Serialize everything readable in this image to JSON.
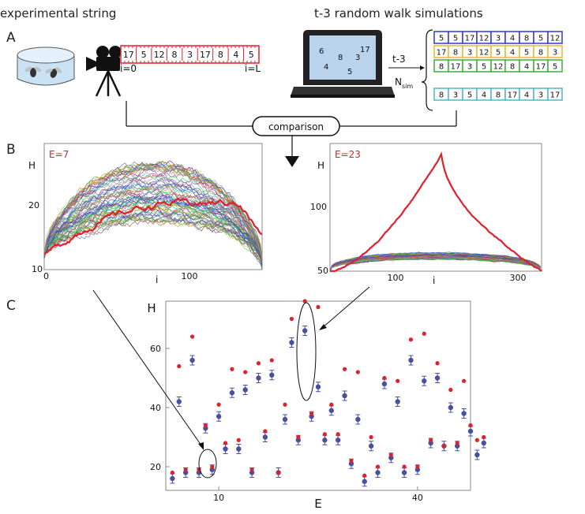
{
  "headers": {
    "left": "experimental string",
    "right": "t-3 random walk simulations"
  },
  "panel_letters": [
    "A",
    "B",
    "C"
  ],
  "panel_a": {
    "experimental_string": [
      "17",
      "5",
      "12",
      "8",
      "3",
      "17",
      "8",
      "4",
      "5"
    ],
    "start_label": "i=0",
    "end_label": "i=L",
    "screen_numbers": [
      "6",
      "8",
      "3",
      "17",
      "4",
      "5"
    ],
    "arrow_label": "t-3",
    "nsim_label": "N",
    "nsim_sub": "sim",
    "sim_rows": [
      {
        "color": "#2b3bd6",
        "values": [
          "5",
          "5",
          "17",
          "12",
          "3",
          "4",
          "8",
          "5",
          "12"
        ]
      },
      {
        "color": "#e8b92a",
        "values": [
          "17",
          "8",
          "3",
          "12",
          "5",
          "4",
          "5",
          "8",
          "3"
        ]
      },
      {
        "color": "#3fae3a",
        "values": [
          "8",
          "17",
          "3",
          "5",
          "12",
          "8",
          "4",
          "17",
          "5"
        ]
      },
      {
        "color": "#4ab8c8",
        "values": [
          "8",
          "3",
          "5",
          "4",
          "8",
          "17",
          "4",
          "3",
          "17"
        ]
      }
    ],
    "comparison_label": "comparison"
  },
  "panel_b": {
    "left_plot": {
      "annotation": "E=7",
      "ylabel": "H",
      "xlabel": "i",
      "y_ticks": [
        "20",
        "10"
      ],
      "x_ticks": [
        "0",
        "100"
      ]
    },
    "right_plot": {
      "annotation": "E=23",
      "ylabel": "H",
      "xlabel": "i",
      "y_ticks": [
        "100",
        "50"
      ],
      "x_ticks": [
        "100",
        "300"
      ]
    },
    "highlight_color": "#e0202a"
  },
  "chart_data": [
    {
      "type": "line",
      "panel": "B-left",
      "annotation": "E=7",
      "xlabel": "i",
      "ylabel": "H",
      "xlim": [
        0,
        140
      ],
      "ylim": [
        10,
        29
      ],
      "highlight_series": {
        "shape": "arch",
        "start": 12,
        "peak": 20,
        "end": 15
      },
      "background_series": {
        "count": 60,
        "shape": "arch",
        "start": 12,
        "peak_range": [
          17,
          26
        ],
        "end": 11
      }
    },
    {
      "type": "line",
      "panel": "B-right",
      "annotation": "E=23",
      "xlabel": "i",
      "ylabel": "H",
      "xlim": [
        0,
        350
      ],
      "ylim": [
        50,
        125
      ],
      "highlight_series": {
        "shape": "peak",
        "start": 50,
        "peak": 119,
        "peak_at": 185,
        "end": 50
      },
      "background_series": {
        "count": 60,
        "shape": "arch",
        "start": 50,
        "peak_range": [
          57,
          61
        ],
        "end": 50
      }
    },
    {
      "type": "scatter",
      "panel": "C",
      "xlabel": "E",
      "ylabel": "H",
      "xlim": [
        2,
        48
      ],
      "ylim": [
        12,
        76
      ],
      "x_ticks": [
        10,
        40
      ],
      "y_ticks": [
        20,
        40,
        60
      ],
      "series": [
        {
          "name": "",
          "color": "#e0202a",
          "values": [
            [
              3,
              18
            ],
            [
              4,
              54
            ],
            [
              5,
              19
            ],
            [
              6,
              64
            ],
            [
              7,
              19
            ],
            [
              8,
              34
            ],
            [
              9,
              20
            ],
            [
              10,
              41
            ],
            [
              11,
              28
            ],
            [
              12,
              53
            ],
            [
              13,
              29
            ],
            [
              14,
              52
            ],
            [
              15,
              19
            ],
            [
              16,
              55
            ],
            [
              17,
              32
            ],
            [
              18,
              56
            ],
            [
              19,
              18
            ],
            [
              20,
              41
            ],
            [
              21,
              70
            ],
            [
              22,
              30
            ],
            [
              23,
              76
            ],
            [
              24,
              38
            ],
            [
              25,
              74
            ],
            [
              26,
              31
            ],
            [
              27,
              41
            ],
            [
              28,
              31
            ],
            [
              29,
              53
            ],
            [
              30,
              22
            ],
            [
              31,
              52
            ],
            [
              32,
              17
            ],
            [
              33,
              30
            ],
            [
              34,
              20
            ],
            [
              35,
              50
            ],
            [
              36,
              24
            ],
            [
              37,
              49
            ],
            [
              38,
              20
            ],
            [
              39,
              63
            ],
            [
              40,
              20
            ],
            [
              41,
              65
            ],
            [
              42,
              29
            ],
            [
              43,
              55
            ],
            [
              44,
              27
            ],
            [
              45,
              46
            ],
            [
              46,
              28
            ],
            [
              47,
              49
            ],
            [
              48,
              34
            ],
            [
              49,
              29
            ],
            [
              50,
              30
            ]
          ]
        },
        {
          "name": "",
          "color": "#4a4fa0",
          "values": [
            [
              3,
              16
            ],
            [
              4,
              42
            ],
            [
              5,
              18
            ],
            [
              6,
              56
            ],
            [
              7,
              18
            ],
            [
              8,
              33
            ],
            [
              9,
              19
            ],
            [
              10,
              37
            ],
            [
              11,
              26
            ],
            [
              12,
              45
            ],
            [
              13,
              26
            ],
            [
              14,
              46
            ],
            [
              15,
              18
            ],
            [
              16,
              50
            ],
            [
              17,
              30
            ],
            [
              18,
              51
            ],
            [
              19,
              18
            ],
            [
              20,
              36
            ],
            [
              21,
              62
            ],
            [
              22,
              29
            ],
            [
              23,
              66
            ],
            [
              24,
              37
            ],
            [
              25,
              47
            ],
            [
              26,
              29
            ],
            [
              27,
              39
            ],
            [
              28,
              29
            ],
            [
              29,
              44
            ],
            [
              30,
              21
            ],
            [
              31,
              36
            ],
            [
              32,
              15
            ],
            [
              33,
              27
            ],
            [
              34,
              18
            ],
            [
              35,
              48
            ],
            [
              36,
              23
            ],
            [
              37,
              42
            ],
            [
              38,
              18
            ],
            [
              39,
              56
            ],
            [
              40,
              19
            ],
            [
              41,
              49
            ],
            [
              42,
              28
            ],
            [
              43,
              50
            ],
            [
              44,
              27
            ],
            [
              45,
              40
            ],
            [
              46,
              27
            ],
            [
              47,
              38
            ],
            [
              48,
              32
            ],
            [
              49,
              24
            ],
            [
              50,
              28
            ]
          ]
        }
      ]
    }
  ]
}
